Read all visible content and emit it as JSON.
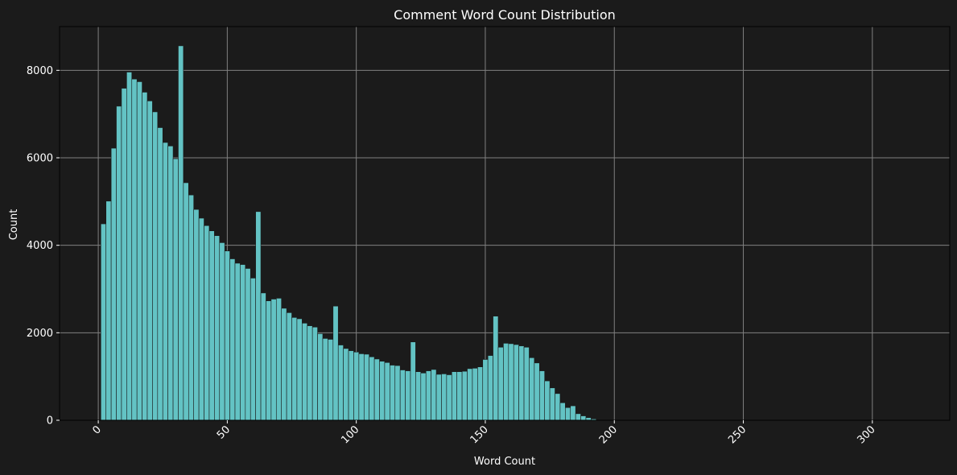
{
  "colors": {
    "background": "#1b1b1b",
    "bar_fill": "#63c3c4",
    "bar_edge": "#1b1b1b",
    "grid": "#808080",
    "axis": "#000000",
    "text": "#ffffff"
  },
  "chart_data": {
    "type": "bar",
    "title": "Comment Word Count Distribution",
    "xlabel": "Word Count",
    "ylabel": "Count",
    "xlim": [
      -15,
      330
    ],
    "ylim": [
      0,
      9000
    ],
    "xticks": [
      0,
      50,
      100,
      150,
      200,
      250,
      300
    ],
    "yticks": [
      0,
      2000,
      4000,
      6000,
      8000
    ],
    "xtick_labels": [
      "0",
      "50",
      "100",
      "150",
      "200",
      "250",
      "300"
    ],
    "ytick_labels": [
      "0",
      "2000",
      "4000",
      "6000",
      "8000"
    ],
    "xtick_rotation": 45,
    "grid": true,
    "bin_start": 1,
    "bin_width": 2,
    "values": [
      4490,
      5010,
      6220,
      7180,
      7590,
      7960,
      7800,
      7740,
      7500,
      7300,
      7050,
      6690,
      6350,
      6270,
      5980,
      8560,
      5430,
      5150,
      4820,
      4620,
      4450,
      4330,
      4220,
      4060,
      3870,
      3690,
      3590,
      3560,
      3470,
      3250,
      4770,
      2910,
      2730,
      2770,
      2790,
      2560,
      2460,
      2350,
      2320,
      2220,
      2160,
      2130,
      1980,
      1870,
      1850,
      2610,
      1720,
      1640,
      1590,
      1560,
      1520,
      1510,
      1450,
      1400,
      1350,
      1320,
      1260,
      1250,
      1150,
      1130,
      1790,
      1110,
      1080,
      1130,
      1160,
      1050,
      1060,
      1040,
      1110,
      1110,
      1120,
      1180,
      1190,
      1220,
      1390,
      1480,
      2380,
      1670,
      1760,
      1750,
      1730,
      1700,
      1670,
      1430,
      1310,
      1130,
      900,
      740,
      610,
      400,
      290,
      330,
      150,
      100,
      60,
      30
    ]
  }
}
